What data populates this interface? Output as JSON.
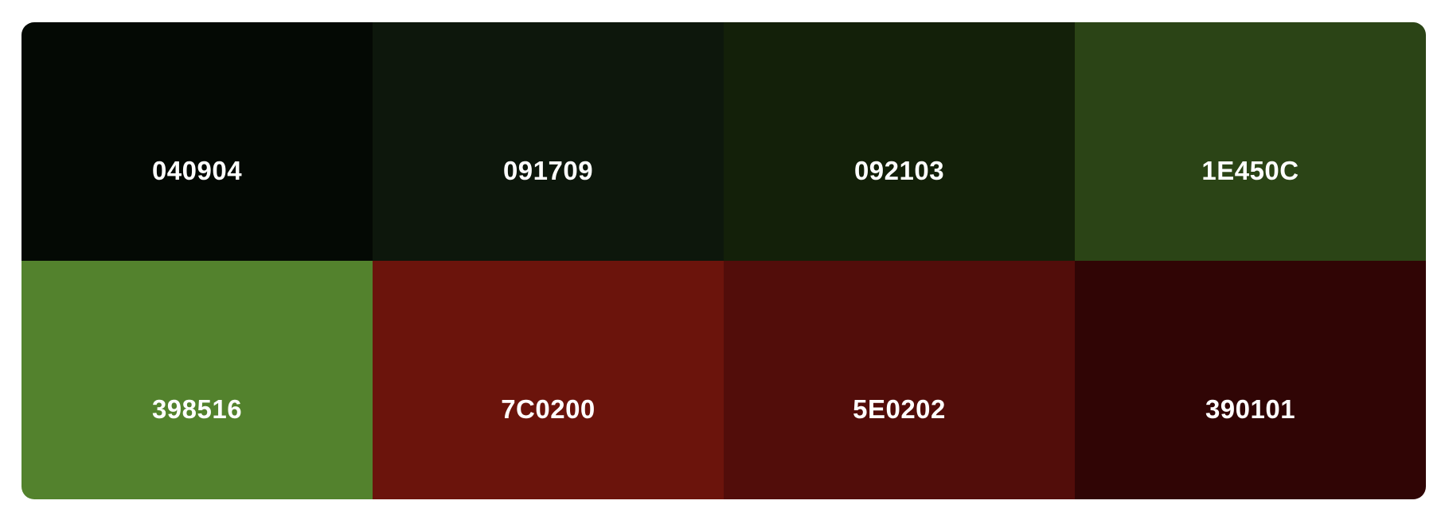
{
  "palette": {
    "swatches": [
      {
        "hex": "040904",
        "color": "#040904",
        "text_color": "#ffffff"
      },
      {
        "hex": "091709",
        "color": "#0d170c",
        "text_color": "#ffffff"
      },
      {
        "hex": "092103",
        "color": "#132009",
        "text_color": "#ffffff"
      },
      {
        "hex": "1E450C",
        "color": "#2b4416",
        "text_color": "#ffffff"
      },
      {
        "hex": "398516",
        "color": "#53822d",
        "text_color": "#ffffff"
      },
      {
        "hex": "7C0200",
        "color": "#6b140c",
        "text_color": "#ffffff"
      },
      {
        "hex": "5E0202",
        "color": "#520d0a",
        "text_color": "#ffffff"
      },
      {
        "hex": "390101",
        "color": "#300505",
        "text_color": "#ffffff"
      }
    ]
  }
}
